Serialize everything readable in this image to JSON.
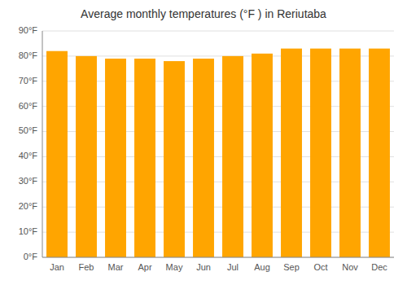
{
  "chart_data": {
    "type": "bar",
    "title": "Average monthly temperatures (°F ) in Reriutaba",
    "categories": [
      "Jan",
      "Feb",
      "Mar",
      "Apr",
      "May",
      "Jun",
      "Jul",
      "Aug",
      "Sep",
      "Oct",
      "Nov",
      "Dec"
    ],
    "values": [
      82,
      80,
      79,
      79,
      78,
      79,
      80,
      81,
      83,
      83,
      83,
      83
    ],
    "color": "#FFA500",
    "ylim": [
      0,
      90
    ],
    "yticks": [
      {
        "value": 0,
        "label": "0°F"
      },
      {
        "value": 10,
        "label": "10°F"
      },
      {
        "value": 20,
        "label": "20°F"
      },
      {
        "value": 30,
        "label": "30°F"
      },
      {
        "value": 40,
        "label": "40°F"
      },
      {
        "value": 50,
        "label": "50°F"
      },
      {
        "value": 60,
        "label": "60°F"
      },
      {
        "value": 70,
        "label": "70°F"
      },
      {
        "value": 80,
        "label": "80°F"
      },
      {
        "value": 90,
        "label": "90°F"
      }
    ],
    "grid": true
  }
}
